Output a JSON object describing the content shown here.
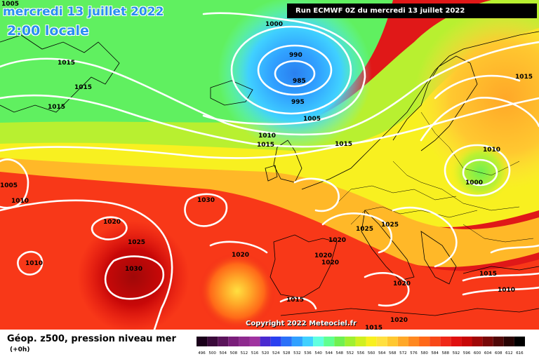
{
  "header": {
    "date": "mercredi 13 juillet 2022",
    "local_time": "2:00 locale",
    "run": "Run ECMWF 0Z du mercredi 13 juillet 2022"
  },
  "footer": {
    "field_label": "Géop. z500, pression niveau mer",
    "lead_time": "(+0h)",
    "copyright": "Copyright 2022 Meteociel.fr"
  },
  "colorbar": {
    "ticks": [
      "496",
      "500",
      "504",
      "508",
      "512",
      "516",
      "520",
      "524",
      "528",
      "532",
      "536",
      "540",
      "544",
      "548",
      "552",
      "556",
      "560",
      "564",
      "568",
      "572",
      "576",
      "580",
      "584",
      "588",
      "592",
      "596",
      "600",
      "604",
      "608",
      "612",
      "616"
    ],
    "colors": [
      "#1a001a",
      "#3a0a3a",
      "#5a145a",
      "#7a1e7a",
      "#8e2a8e",
      "#a033a0",
      "#4a2ad0",
      "#2a40f0",
      "#2a70f8",
      "#30a0ff",
      "#40d0ff",
      "#60ffe0",
      "#60ff90",
      "#70f050",
      "#a0f030",
      "#d0f020",
      "#f8f020",
      "#ffe040",
      "#ffc830",
      "#ffa828",
      "#ff8820",
      "#ff6818",
      "#f84818",
      "#f02818",
      "#e01010",
      "#c80808",
      "#a00808",
      "#780808",
      "#500808",
      "#280404",
      "#000000"
    ]
  },
  "pressure_labels": [
    "1005",
    "1015",
    "1015",
    "1015",
    "1000",
    "990",
    "985",
    "995",
    "1005",
    "1010",
    "1015",
    "1015",
    "1015",
    "1010",
    "1000",
    "1005",
    "1010",
    "1030",
    "1020",
    "1025",
    "1010",
    "1030",
    "1020",
    "1020",
    "1020",
    "1020",
    "1025",
    "1025",
    "1015",
    "1020",
    "1020",
    "1015",
    "1010",
    "1015"
  ]
}
